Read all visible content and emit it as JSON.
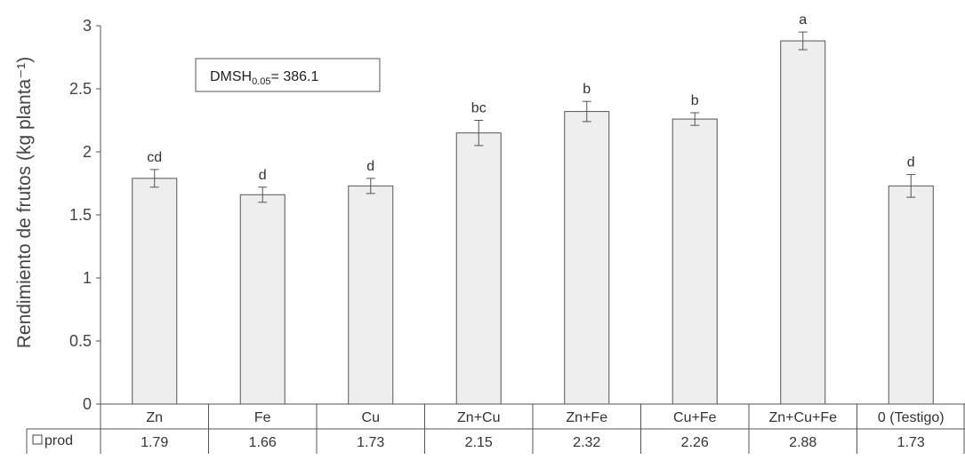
{
  "chart_data": {
    "type": "bar",
    "categories": [
      "Zn",
      "Fe",
      "Cu",
      "Zn+Cu",
      "Zn+Fe",
      "Cu+Fe",
      "Zn+Cu+Fe",
      "0 (Testigo)"
    ],
    "series": [
      {
        "name": "prod",
        "values": [
          1.79,
          1.66,
          1.73,
          2.15,
          2.32,
          2.26,
          2.88,
          1.73
        ]
      }
    ],
    "value_labels": [
      "1.79",
      "1.66",
      "1.73",
      "2.15",
      "2.32",
      "2.26",
      "2.88",
      "1.73"
    ],
    "error_bars": [
      0.07,
      0.06,
      0.06,
      0.1,
      0.08,
      0.05,
      0.07,
      0.09
    ],
    "significance_letters": [
      "cd",
      "d",
      "d",
      "bc",
      "b",
      "b",
      "a",
      "d"
    ],
    "ylabel": "Rendimiento de frutos (kg planta⁻¹)",
    "ylim": [
      0,
      3
    ],
    "yticks": [
      "0",
      "0.5",
      "1",
      "1.5",
      "2",
      "2.5",
      "3"
    ],
    "annotation": {
      "prefix": "DMSH",
      "subscript": "0.05",
      "suffix": "= 386.1"
    },
    "legend_placement": "data-table-left",
    "data_table": true,
    "grid": false,
    "bar_color": "#eeeeee",
    "bar_edge_color": "#555555"
  }
}
